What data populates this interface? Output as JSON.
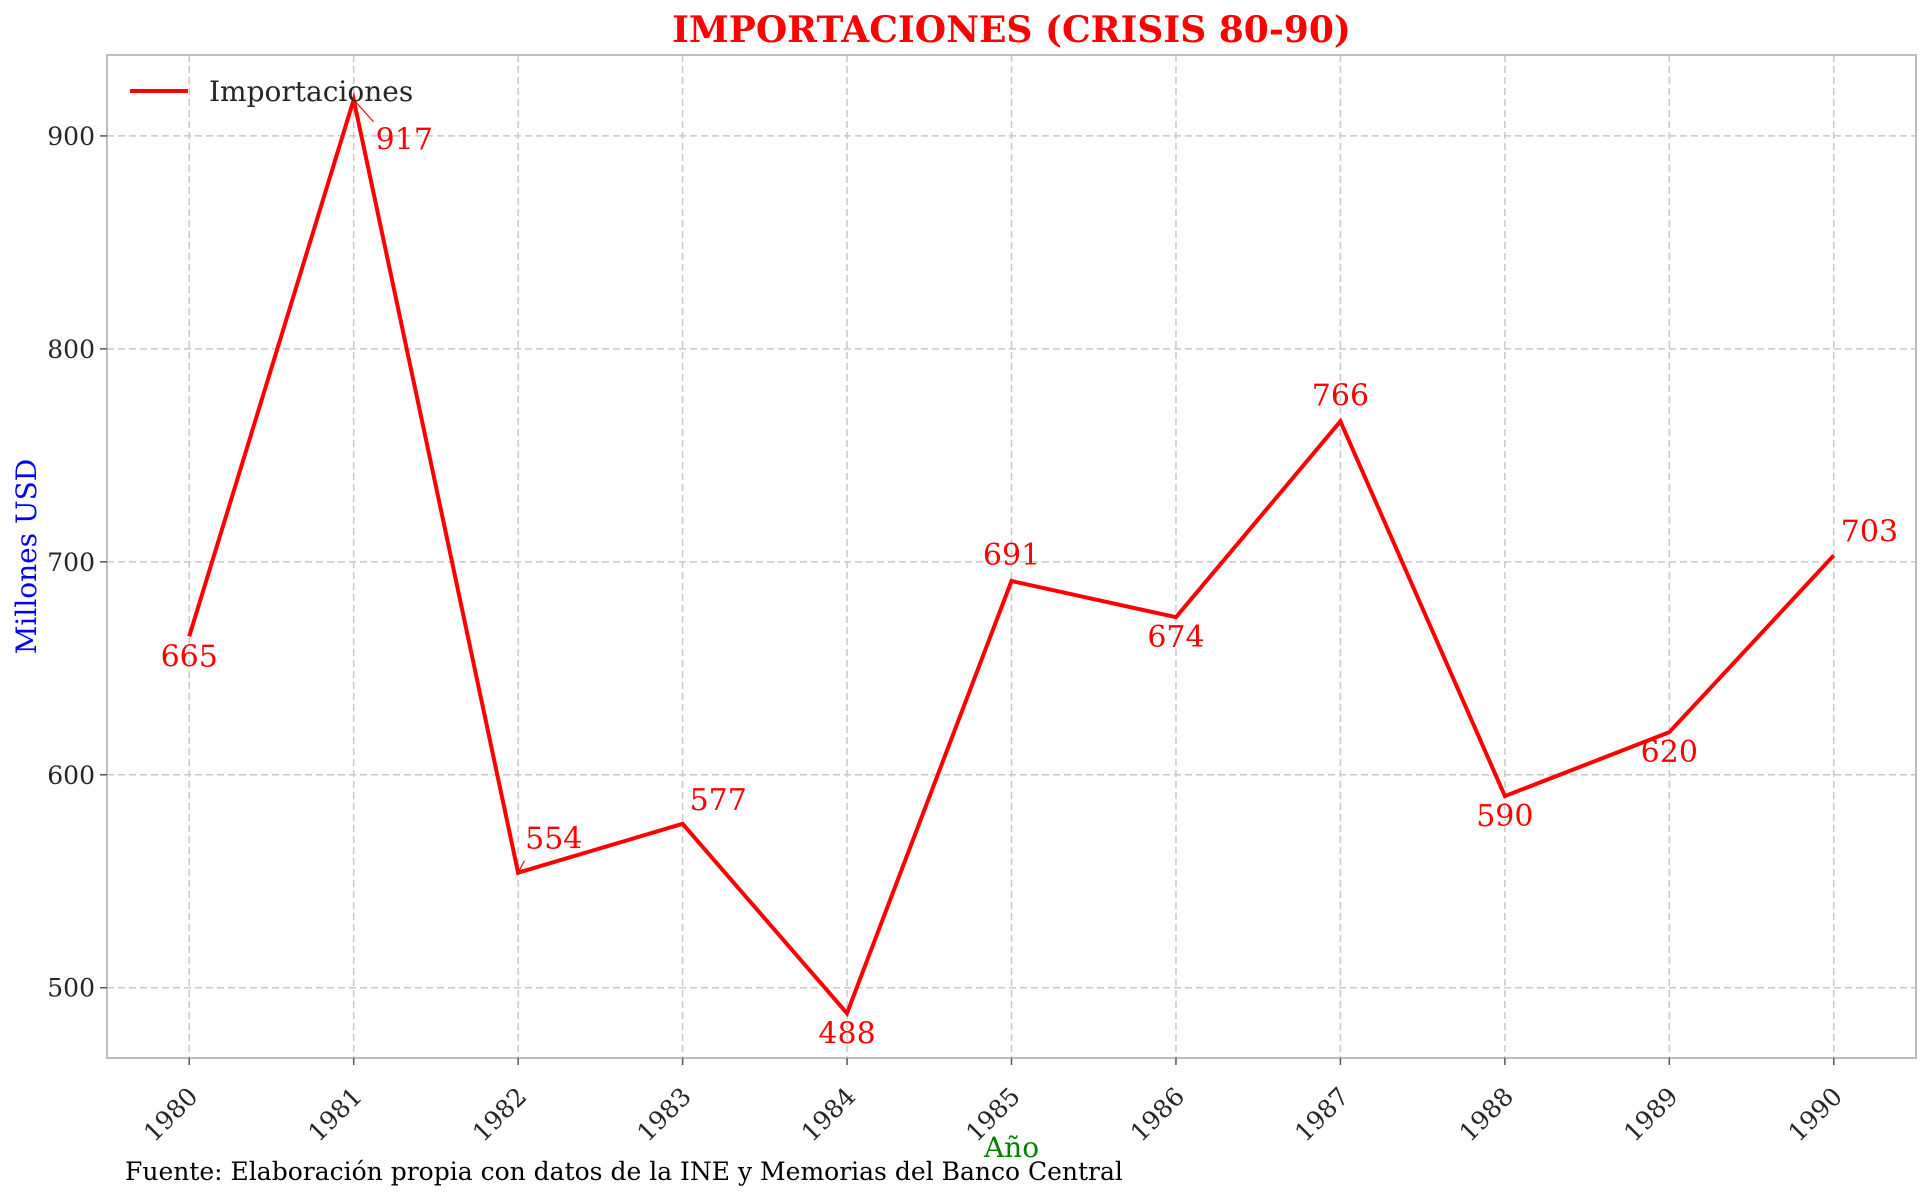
{
  "chart_data": {
    "type": "line",
    "title": "IMPORTACIONES (CRISIS 80-90)",
    "xlabel": "Año",
    "ylabel": "Millones USD",
    "x": [
      1980,
      1981,
      1982,
      1983,
      1984,
      1985,
      1986,
      1987,
      1988,
      1989,
      1990
    ],
    "series": [
      {
        "name": "Importaciones",
        "color": "#ff0000",
        "values": [
          665,
          917,
          554,
          577,
          488,
          691,
          674,
          766,
          590,
          620,
          703
        ]
      }
    ],
    "data_labels": [
      "665",
      "917",
      "554",
      "577",
      "488",
      "691",
      "674",
      "766",
      "590",
      "620",
      "703"
    ],
    "x_ticks": [
      "1980",
      "1981",
      "1982",
      "1983",
      "1984",
      "1985",
      "1986",
      "1987",
      "1988",
      "1989",
      "1990"
    ],
    "y_ticks": [
      500,
      600,
      700,
      800,
      900
    ],
    "y_tick_labels": [
      "500",
      "600",
      "700",
      "800",
      "900"
    ],
    "xlim": [
      1979.5,
      1990.5
    ],
    "ylim": [
      467,
      938
    ],
    "grid": true,
    "legend_position": "top-left",
    "source_note": "Fuente: Elaboración propia con datos de la INE y Memorias del Banco Central"
  }
}
